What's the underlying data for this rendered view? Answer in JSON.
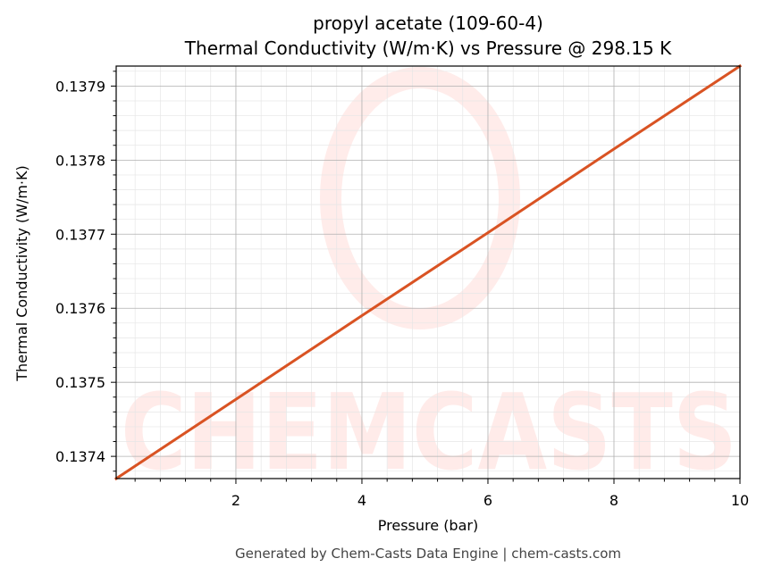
{
  "chart_data": {
    "type": "line",
    "title": "propyl acetate (109-60-4)",
    "subtitle": "Thermal Conductivity (W/m·K) vs Pressure @ 298.15 K",
    "xlabel": "Pressure (bar)",
    "ylabel": "Thermal Conductivity (W/m·K)",
    "xlim": [
      0.1,
      10
    ],
    "ylim": [
      0.13737,
      0.137927
    ],
    "x_ticks": [
      2,
      4,
      6,
      8,
      10
    ],
    "x_tick_labels": [
      "2",
      "4",
      "6",
      "8",
      "10"
    ],
    "y_ticks": [
      0.1374,
      0.1375,
      0.1376,
      0.1377,
      0.1378,
      0.1379
    ],
    "y_tick_labels": [
      "0.1374",
      "0.1375",
      "0.1376",
      "0.1377",
      "0.1378",
      "0.1379"
    ],
    "grid": true,
    "series": [
      {
        "color": "#d95323",
        "x": [
          0.1,
          2,
          4,
          6,
          8,
          10
        ],
        "y": [
          0.13737,
          0.137477,
          0.13759,
          0.137702,
          0.137815,
          0.137927
        ]
      }
    ]
  },
  "footer": "Generated by Chem-Casts Data Engine | chem-casts.com",
  "watermark": "CHEMCASTS"
}
